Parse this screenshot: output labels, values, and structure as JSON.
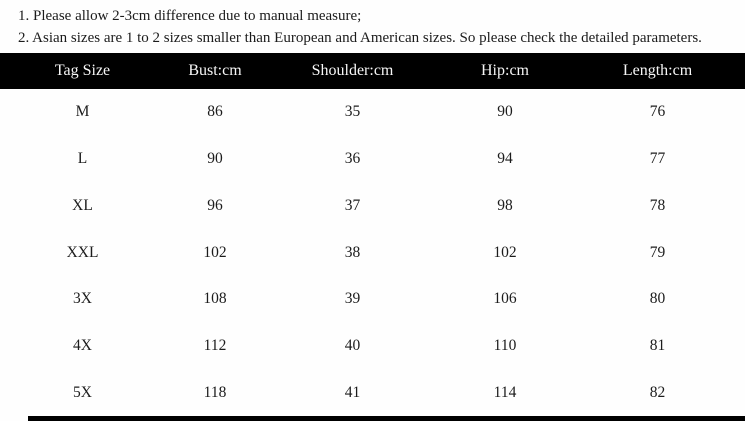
{
  "notes": {
    "line1": "1. Please allow 2-3cm difference due to manual measure;",
    "line2": "2. Asian sizes are 1 to 2 sizes smaller than European and American sizes. So please check the detailed parameters."
  },
  "table": {
    "columns": {
      "size": "Tag Size",
      "bust": "Bust:cm",
      "shoulder": "Shoulder:cm",
      "hip": "Hip:cm",
      "length": "Length:cm"
    },
    "rows": [
      {
        "size": "M",
        "bust": "86",
        "shoulder": "35",
        "hip": "90",
        "length": "76"
      },
      {
        "size": "L",
        "bust": "90",
        "shoulder": "36",
        "hip": "94",
        "length": "77"
      },
      {
        "size": "XL",
        "bust": "96",
        "shoulder": "37",
        "hip": "98",
        "length": "78"
      },
      {
        "size": "XXL",
        "bust": "102",
        "shoulder": "38",
        "hip": "102",
        "length": "79"
      },
      {
        "size": "3X",
        "bust": "108",
        "shoulder": "39",
        "hip": "106",
        "length": "80"
      },
      {
        "size": "4X",
        "bust": "112",
        "shoulder": "40",
        "hip": "110",
        "length": "81"
      },
      {
        "size": "5X",
        "bust": "118",
        "shoulder": "41",
        "hip": "114",
        "length": "82"
      }
    ]
  },
  "colors": {
    "header_bg": "#000000",
    "header_text": "#f7f7f7",
    "body_text": "#1c1c1c",
    "background": "#fefefe"
  }
}
